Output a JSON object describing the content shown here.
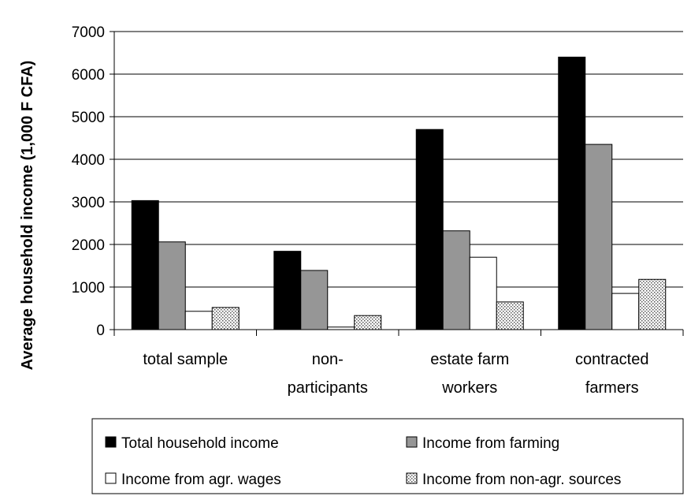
{
  "chart_data": {
    "type": "bar",
    "title": "",
    "ylabel": "Average household income (1,000 F CFA)",
    "xlabel": "",
    "ylim": [
      0,
      7000
    ],
    "yticks": [
      0,
      1000,
      2000,
      3000,
      4000,
      5000,
      6000,
      7000
    ],
    "grid": true,
    "legend_position": "bottom",
    "categories": [
      [
        "total sample"
      ],
      [
        "non-",
        "participants"
      ],
      [
        "estate farm",
        "workers"
      ],
      [
        "contracted",
        "farmers"
      ]
    ],
    "series": [
      {
        "name": "Total household income",
        "values": [
          3030,
          1840,
          4700,
          6400
        ],
        "fill": "#000000"
      },
      {
        "name": "Income from farming",
        "values": [
          2060,
          1390,
          2320,
          4350
        ],
        "fill": "#969696"
      },
      {
        "name": "Income from agr. wages",
        "values": [
          430,
          60,
          1700,
          850
        ],
        "fill": "#ffffff"
      },
      {
        "name": "Income from non-agr. sources",
        "values": [
          520,
          330,
          650,
          1180
        ],
        "fill": "dots"
      }
    ]
  }
}
